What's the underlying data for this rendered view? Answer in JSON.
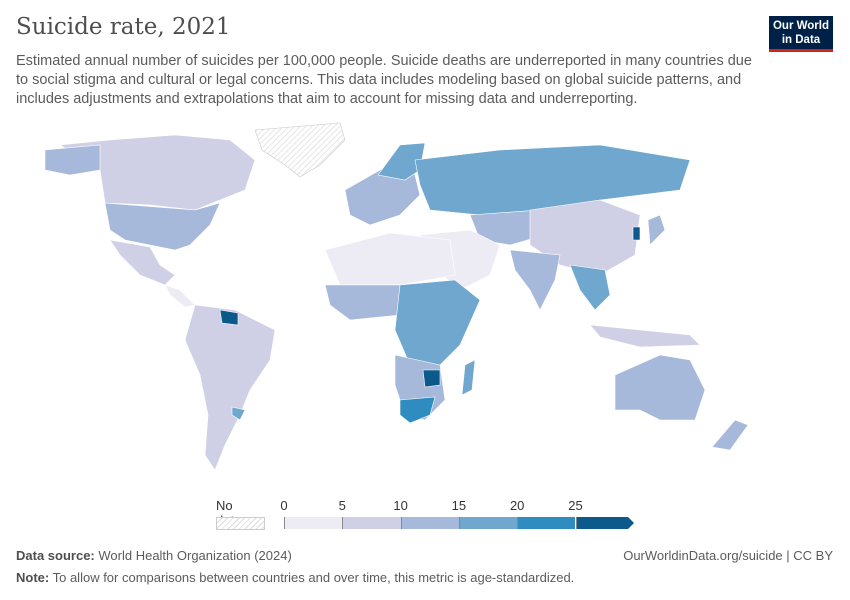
{
  "title": "Suicide rate, 2021",
  "subtitle": "Estimated annual number of suicides per 100,000 people. Suicide deaths are underreported in many countries due to social stigma and cultural or legal concerns. This data includes modeling based on global suicide patterns, and includes adjustments and extrapolations that aim to account for missing data and underreporting.",
  "logo": {
    "line1": "Our World",
    "line2": "in Data"
  },
  "legend": {
    "no_data_label": "No data",
    "ticks": [
      "0",
      "5",
      "10",
      "15",
      "20",
      "25"
    ],
    "bins": [
      {
        "min": 0,
        "max": 5,
        "color": "#edecf4"
      },
      {
        "min": 5,
        "max": 10,
        "color": "#cfd0e6"
      },
      {
        "min": 10,
        "max": 15,
        "color": "#a6b9da"
      },
      {
        "min": 15,
        "max": 20,
        "color": "#6fa7cf"
      },
      {
        "min": 20,
        "max": 25,
        "color": "#2f8cc0"
      },
      {
        "min": 25,
        "max": null,
        "color": "#0c5a8c"
      }
    ]
  },
  "footer": {
    "source_label": "Data source:",
    "source": "World Health Organization (2024)",
    "license": "OurWorldinData.org/suicide | CC BY",
    "note_label": "Note:",
    "note": "To allow for comparisons between countries and over time, this metric is age-standardized."
  }
}
